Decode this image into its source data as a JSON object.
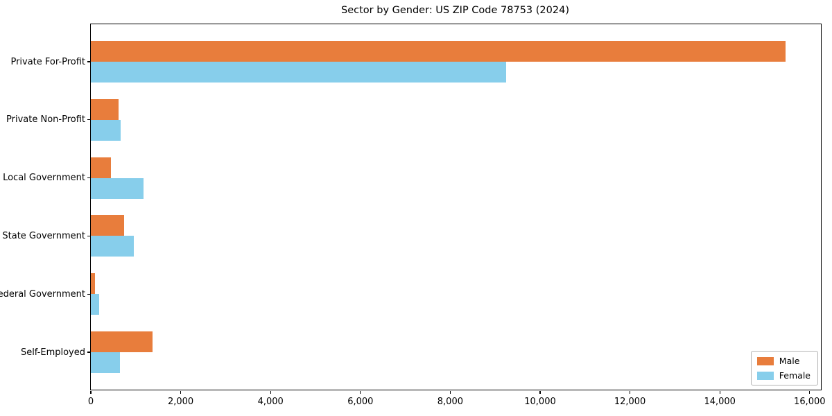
{
  "chart_data": {
    "type": "bar",
    "orientation": "horizontal",
    "title": "Sector by Gender: US ZIP Code 78753 (2024)",
    "categories": [
      "Private For-Profit",
      "Private Non-Profit",
      "Local Government",
      "State Government",
      "Federal Government",
      "Self-Employed"
    ],
    "series": [
      {
        "name": "Male",
        "color": "#e87d3c",
        "values": [
          15460,
          610,
          450,
          740,
          95,
          1365
        ]
      },
      {
        "name": "Female",
        "color": "#87ceeb",
        "values": [
          9250,
          670,
          1165,
          960,
          190,
          650
        ]
      }
    ],
    "xlabel": "",
    "ylabel": "",
    "xlim": [
      0,
      16250
    ],
    "x_ticks": [
      0,
      2000,
      4000,
      6000,
      8000,
      10000,
      12000,
      14000,
      16000
    ],
    "x_tick_labels": [
      "0",
      "2,000",
      "4,000",
      "6,000",
      "8,000",
      "10,000",
      "12,000",
      "14,000",
      "16,000"
    ],
    "grid": false,
    "legend_position": "lower right",
    "spine_color": "#000000",
    "background_color": "#ffffff"
  }
}
